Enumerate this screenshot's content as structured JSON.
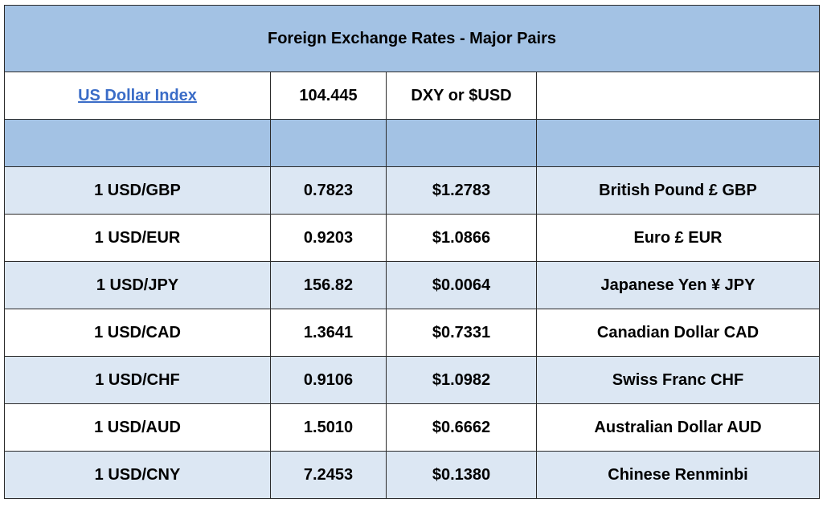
{
  "title": "Foreign Exchange Rates - Major Pairs",
  "index_row": {
    "label": "US Dollar Index",
    "value": "104.445",
    "symbol": "DXY or $USD",
    "note": ""
  },
  "rows": [
    {
      "pair": "1 USD/GBP",
      "rate": "0.7823",
      "inverse": "$1.2783",
      "currency": "British Pound £ GBP"
    },
    {
      "pair": "1 USD/EUR",
      "rate": "0.9203",
      "inverse": "$1.0866",
      "currency": "Euro £ EUR"
    },
    {
      "pair": "1 USD/JPY",
      "rate": "156.82",
      "inverse": "$0.0064",
      "currency": "Japanese Yen ¥ JPY"
    },
    {
      "pair": "1 USD/CAD",
      "rate": "1.3641",
      "inverse": "$0.7331",
      "currency": "Canadian Dollar CAD"
    },
    {
      "pair": "1 USD/CHF",
      "rate": "0.9106",
      "inverse": "$1.0982",
      "currency": "Swiss Franc CHF"
    },
    {
      "pair": "1 USD/AUD",
      "rate": "1.5010",
      "inverse": "$0.6662",
      "currency": "Australian Dollar AUD"
    },
    {
      "pair": "1 USD/CNY",
      "rate": "7.2453",
      "inverse": "$0.1380",
      "currency": "Chinese Renminbi"
    }
  ],
  "colors": {
    "header_fill": "#a3c2e4",
    "alt_row_fill": "#dce7f3",
    "link": "#3a6cc7"
  }
}
